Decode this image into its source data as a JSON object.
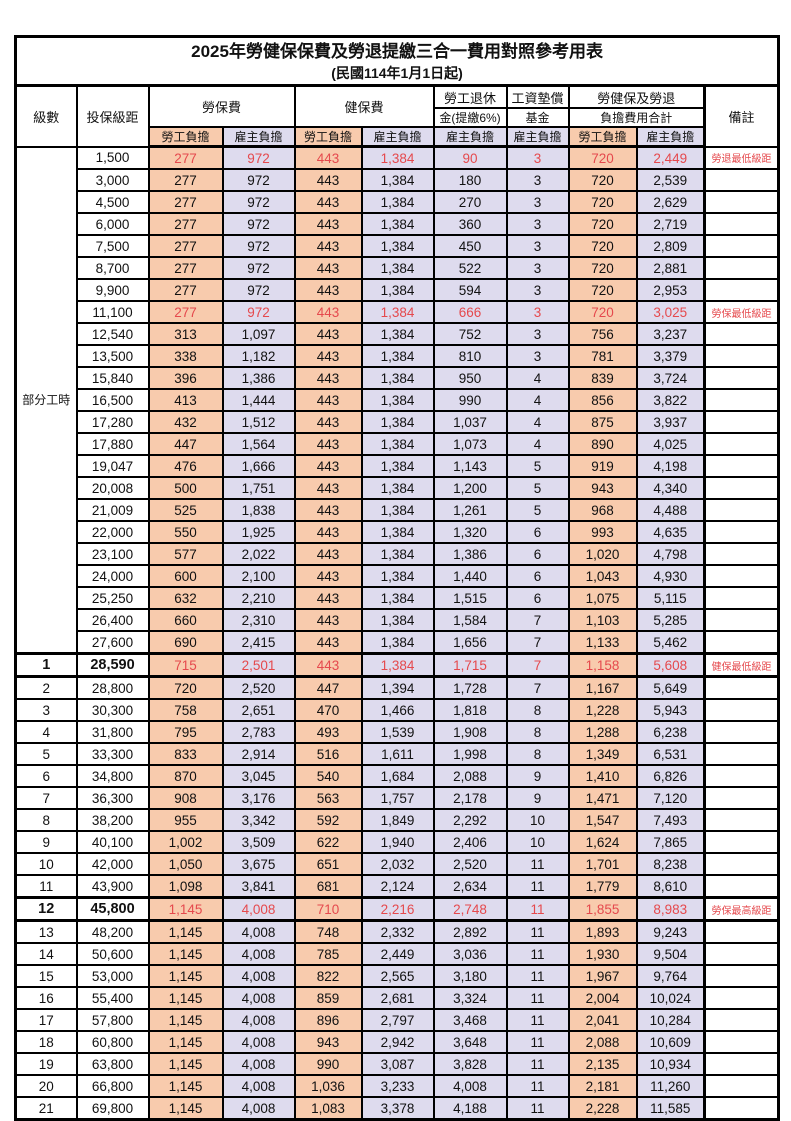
{
  "title": "2025年勞健保保費及勞退提繳三合一費用對照參考用表",
  "subtitle": "(民國114年1月1日起)",
  "colors": {
    "orange": "#F8CBAD",
    "lavender": "#DEDBEE",
    "red_text": "#E5494D",
    "border": "#000000"
  },
  "table": {
    "header": {
      "level": "級數",
      "bracket": "投保級距",
      "labor_fee": "勞保費",
      "health_fee": "健保費",
      "pension_line1": "勞工退休",
      "pension_line2": "金(提繳6%)",
      "wage_fund_line1": "工資墊償",
      "wage_fund_line2": "基金",
      "total_line1": "勞健保及勞退",
      "total_line2": "負擔費用合計",
      "remark": "備註",
      "employee": "勞工負擔",
      "employer": "雇主負擔"
    },
    "part_time_label": "部分工時",
    "part_time_rowspan": 23,
    "thick_top_row_indexes": [
      23,
      24,
      34,
      35
    ],
    "rows": [
      {
        "level": "",
        "bracket": "1,500",
        "labor_emp": "277",
        "labor_er": "972",
        "health_emp": "443",
        "health_er": "1,384",
        "pension_er": "90",
        "fund_er": "3",
        "total_emp": "720",
        "total_er": "2,449",
        "remark": "勞退最低級距",
        "red": true,
        "bold": false
      },
      {
        "level": "",
        "bracket": "3,000",
        "labor_emp": "277",
        "labor_er": "972",
        "health_emp": "443",
        "health_er": "1,384",
        "pension_er": "180",
        "fund_er": "3",
        "total_emp": "720",
        "total_er": "2,539",
        "remark": "",
        "red": false,
        "bold": false
      },
      {
        "level": "",
        "bracket": "4,500",
        "labor_emp": "277",
        "labor_er": "972",
        "health_emp": "443",
        "health_er": "1,384",
        "pension_er": "270",
        "fund_er": "3",
        "total_emp": "720",
        "total_er": "2,629",
        "remark": "",
        "red": false,
        "bold": false
      },
      {
        "level": "",
        "bracket": "6,000",
        "labor_emp": "277",
        "labor_er": "972",
        "health_emp": "443",
        "health_er": "1,384",
        "pension_er": "360",
        "fund_er": "3",
        "total_emp": "720",
        "total_er": "2,719",
        "remark": "",
        "red": false,
        "bold": false
      },
      {
        "level": "",
        "bracket": "7,500",
        "labor_emp": "277",
        "labor_er": "972",
        "health_emp": "443",
        "health_er": "1,384",
        "pension_er": "450",
        "fund_er": "3",
        "total_emp": "720",
        "total_er": "2,809",
        "remark": "",
        "red": false,
        "bold": false
      },
      {
        "level": "",
        "bracket": "8,700",
        "labor_emp": "277",
        "labor_er": "972",
        "health_emp": "443",
        "health_er": "1,384",
        "pension_er": "522",
        "fund_er": "3",
        "total_emp": "720",
        "total_er": "2,881",
        "remark": "",
        "red": false,
        "bold": false
      },
      {
        "level": "",
        "bracket": "9,900",
        "labor_emp": "277",
        "labor_er": "972",
        "health_emp": "443",
        "health_er": "1,384",
        "pension_er": "594",
        "fund_er": "3",
        "total_emp": "720",
        "total_er": "2,953",
        "remark": "",
        "red": false,
        "bold": false
      },
      {
        "level": "",
        "bracket": "11,100",
        "labor_emp": "277",
        "labor_er": "972",
        "health_emp": "443",
        "health_er": "1,384",
        "pension_er": "666",
        "fund_er": "3",
        "total_emp": "720",
        "total_er": "3,025",
        "remark": "勞保最低級距",
        "red": true,
        "bold": false
      },
      {
        "level": "",
        "bracket": "12,540",
        "labor_emp": "313",
        "labor_er": "1,097",
        "health_emp": "443",
        "health_er": "1,384",
        "pension_er": "752",
        "fund_er": "3",
        "total_emp": "756",
        "total_er": "3,237",
        "remark": "",
        "red": false,
        "bold": false
      },
      {
        "level": "",
        "bracket": "13,500",
        "labor_emp": "338",
        "labor_er": "1,182",
        "health_emp": "443",
        "health_er": "1,384",
        "pension_er": "810",
        "fund_er": "3",
        "total_emp": "781",
        "total_er": "3,379",
        "remark": "",
        "red": false,
        "bold": false
      },
      {
        "level": "",
        "bracket": "15,840",
        "labor_emp": "396",
        "labor_er": "1,386",
        "health_emp": "443",
        "health_er": "1,384",
        "pension_er": "950",
        "fund_er": "4",
        "total_emp": "839",
        "total_er": "3,724",
        "remark": "",
        "red": false,
        "bold": false
      },
      {
        "level": "",
        "bracket": "16,500",
        "labor_emp": "413",
        "labor_er": "1,444",
        "health_emp": "443",
        "health_er": "1,384",
        "pension_er": "990",
        "fund_er": "4",
        "total_emp": "856",
        "total_er": "3,822",
        "remark": "",
        "red": false,
        "bold": false
      },
      {
        "level": "",
        "bracket": "17,280",
        "labor_emp": "432",
        "labor_er": "1,512",
        "health_emp": "443",
        "health_er": "1,384",
        "pension_er": "1,037",
        "fund_er": "4",
        "total_emp": "875",
        "total_er": "3,937",
        "remark": "",
        "red": false,
        "bold": false
      },
      {
        "level": "",
        "bracket": "17,880",
        "labor_emp": "447",
        "labor_er": "1,564",
        "health_emp": "443",
        "health_er": "1,384",
        "pension_er": "1,073",
        "fund_er": "4",
        "total_emp": "890",
        "total_er": "4,025",
        "remark": "",
        "red": false,
        "bold": false
      },
      {
        "level": "",
        "bracket": "19,047",
        "labor_emp": "476",
        "labor_er": "1,666",
        "health_emp": "443",
        "health_er": "1,384",
        "pension_er": "1,143",
        "fund_er": "5",
        "total_emp": "919",
        "total_er": "4,198",
        "remark": "",
        "red": false,
        "bold": false
      },
      {
        "level": "",
        "bracket": "20,008",
        "labor_emp": "500",
        "labor_er": "1,751",
        "health_emp": "443",
        "health_er": "1,384",
        "pension_er": "1,200",
        "fund_er": "5",
        "total_emp": "943",
        "total_er": "4,340",
        "remark": "",
        "red": false,
        "bold": false
      },
      {
        "level": "",
        "bracket": "21,009",
        "labor_emp": "525",
        "labor_er": "1,838",
        "health_emp": "443",
        "health_er": "1,384",
        "pension_er": "1,261",
        "fund_er": "5",
        "total_emp": "968",
        "total_er": "4,488",
        "remark": "",
        "red": false,
        "bold": false
      },
      {
        "level": "",
        "bracket": "22,000",
        "labor_emp": "550",
        "labor_er": "1,925",
        "health_emp": "443",
        "health_er": "1,384",
        "pension_er": "1,320",
        "fund_er": "6",
        "total_emp": "993",
        "total_er": "4,635",
        "remark": "",
        "red": false,
        "bold": false
      },
      {
        "level": "",
        "bracket": "23,100",
        "labor_emp": "577",
        "labor_er": "2,022",
        "health_emp": "443",
        "health_er": "1,384",
        "pension_er": "1,386",
        "fund_er": "6",
        "total_emp": "1,020",
        "total_er": "4,798",
        "remark": "",
        "red": false,
        "bold": false
      },
      {
        "level": "",
        "bracket": "24,000",
        "labor_emp": "600",
        "labor_er": "2,100",
        "health_emp": "443",
        "health_er": "1,384",
        "pension_er": "1,440",
        "fund_er": "6",
        "total_emp": "1,043",
        "total_er": "4,930",
        "remark": "",
        "red": false,
        "bold": false
      },
      {
        "level": "",
        "bracket": "25,250",
        "labor_emp": "632",
        "labor_er": "2,210",
        "health_emp": "443",
        "health_er": "1,384",
        "pension_er": "1,515",
        "fund_er": "6",
        "total_emp": "1,075",
        "total_er": "5,115",
        "remark": "",
        "red": false,
        "bold": false
      },
      {
        "level": "",
        "bracket": "26,400",
        "labor_emp": "660",
        "labor_er": "2,310",
        "health_emp": "443",
        "health_er": "1,384",
        "pension_er": "1,584",
        "fund_er": "7",
        "total_emp": "1,103",
        "total_er": "5,285",
        "remark": "",
        "red": false,
        "bold": false
      },
      {
        "level": "",
        "bracket": "27,600",
        "labor_emp": "690",
        "labor_er": "2,415",
        "health_emp": "443",
        "health_er": "1,384",
        "pension_er": "1,656",
        "fund_er": "7",
        "total_emp": "1,133",
        "total_er": "5,462",
        "remark": "",
        "red": false,
        "bold": false
      },
      {
        "level": "1",
        "bracket": "28,590",
        "labor_emp": "715",
        "labor_er": "2,501",
        "health_emp": "443",
        "health_er": "1,384",
        "pension_er": "1,715",
        "fund_er": "7",
        "total_emp": "1,158",
        "total_er": "5,608",
        "remark": "健保最低級距",
        "red": true,
        "bold": true
      },
      {
        "level": "2",
        "bracket": "28,800",
        "labor_emp": "720",
        "labor_er": "2,520",
        "health_emp": "447",
        "health_er": "1,394",
        "pension_er": "1,728",
        "fund_er": "7",
        "total_emp": "1,167",
        "total_er": "5,649",
        "remark": "",
        "red": false,
        "bold": false
      },
      {
        "level": "3",
        "bracket": "30,300",
        "labor_emp": "758",
        "labor_er": "2,651",
        "health_emp": "470",
        "health_er": "1,466",
        "pension_er": "1,818",
        "fund_er": "8",
        "total_emp": "1,228",
        "total_er": "5,943",
        "remark": "",
        "red": false,
        "bold": false
      },
      {
        "level": "4",
        "bracket": "31,800",
        "labor_emp": "795",
        "labor_er": "2,783",
        "health_emp": "493",
        "health_er": "1,539",
        "pension_er": "1,908",
        "fund_er": "8",
        "total_emp": "1,288",
        "total_er": "6,238",
        "remark": "",
        "red": false,
        "bold": false
      },
      {
        "level": "5",
        "bracket": "33,300",
        "labor_emp": "833",
        "labor_er": "2,914",
        "health_emp": "516",
        "health_er": "1,611",
        "pension_er": "1,998",
        "fund_er": "8",
        "total_emp": "1,349",
        "total_er": "6,531",
        "remark": "",
        "red": false,
        "bold": false
      },
      {
        "level": "6",
        "bracket": "34,800",
        "labor_emp": "870",
        "labor_er": "3,045",
        "health_emp": "540",
        "health_er": "1,684",
        "pension_er": "2,088",
        "fund_er": "9",
        "total_emp": "1,410",
        "total_er": "6,826",
        "remark": "",
        "red": false,
        "bold": false
      },
      {
        "level": "7",
        "bracket": "36,300",
        "labor_emp": "908",
        "labor_er": "3,176",
        "health_emp": "563",
        "health_er": "1,757",
        "pension_er": "2,178",
        "fund_er": "9",
        "total_emp": "1,471",
        "total_er": "7,120",
        "remark": "",
        "red": false,
        "bold": false
      },
      {
        "level": "8",
        "bracket": "38,200",
        "labor_emp": "955",
        "labor_er": "3,342",
        "health_emp": "592",
        "health_er": "1,849",
        "pension_er": "2,292",
        "fund_er": "10",
        "total_emp": "1,547",
        "total_er": "7,493",
        "remark": "",
        "red": false,
        "bold": false
      },
      {
        "level": "9",
        "bracket": "40,100",
        "labor_emp": "1,002",
        "labor_er": "3,509",
        "health_emp": "622",
        "health_er": "1,940",
        "pension_er": "2,406",
        "fund_er": "10",
        "total_emp": "1,624",
        "total_er": "7,865",
        "remark": "",
        "red": false,
        "bold": false
      },
      {
        "level": "10",
        "bracket": "42,000",
        "labor_emp": "1,050",
        "labor_er": "3,675",
        "health_emp": "651",
        "health_er": "2,032",
        "pension_er": "2,520",
        "fund_er": "11",
        "total_emp": "1,701",
        "total_er": "8,238",
        "remark": "",
        "red": false,
        "bold": false
      },
      {
        "level": "11",
        "bracket": "43,900",
        "labor_emp": "1,098",
        "labor_er": "3,841",
        "health_emp": "681",
        "health_er": "2,124",
        "pension_er": "2,634",
        "fund_er": "11",
        "total_emp": "1,779",
        "total_er": "8,610",
        "remark": "",
        "red": false,
        "bold": false
      },
      {
        "level": "12",
        "bracket": "45,800",
        "labor_emp": "1,145",
        "labor_er": "4,008",
        "health_emp": "710",
        "health_er": "2,216",
        "pension_er": "2,748",
        "fund_er": "11",
        "total_emp": "1,855",
        "total_er": "8,983",
        "remark": "勞保最高級距",
        "red": true,
        "bold": true
      },
      {
        "level": "13",
        "bracket": "48,200",
        "labor_emp": "1,145",
        "labor_er": "4,008",
        "health_emp": "748",
        "health_er": "2,332",
        "pension_er": "2,892",
        "fund_er": "11",
        "total_emp": "1,893",
        "total_er": "9,243",
        "remark": "",
        "red": false,
        "bold": false
      },
      {
        "level": "14",
        "bracket": "50,600",
        "labor_emp": "1,145",
        "labor_er": "4,008",
        "health_emp": "785",
        "health_er": "2,449",
        "pension_er": "3,036",
        "fund_er": "11",
        "total_emp": "1,930",
        "total_er": "9,504",
        "remark": "",
        "red": false,
        "bold": false
      },
      {
        "level": "15",
        "bracket": "53,000",
        "labor_emp": "1,145",
        "labor_er": "4,008",
        "health_emp": "822",
        "health_er": "2,565",
        "pension_er": "3,180",
        "fund_er": "11",
        "total_emp": "1,967",
        "total_er": "9,764",
        "remark": "",
        "red": false,
        "bold": false
      },
      {
        "level": "16",
        "bracket": "55,400",
        "labor_emp": "1,145",
        "labor_er": "4,008",
        "health_emp": "859",
        "health_er": "2,681",
        "pension_er": "3,324",
        "fund_er": "11",
        "total_emp": "2,004",
        "total_er": "10,024",
        "remark": "",
        "red": false,
        "bold": false
      },
      {
        "level": "17",
        "bracket": "57,800",
        "labor_emp": "1,145",
        "labor_er": "4,008",
        "health_emp": "896",
        "health_er": "2,797",
        "pension_er": "3,468",
        "fund_er": "11",
        "total_emp": "2,041",
        "total_er": "10,284",
        "remark": "",
        "red": false,
        "bold": false
      },
      {
        "level": "18",
        "bracket": "60,800",
        "labor_emp": "1,145",
        "labor_er": "4,008",
        "health_emp": "943",
        "health_er": "2,942",
        "pension_er": "3,648",
        "fund_er": "11",
        "total_emp": "2,088",
        "total_er": "10,609",
        "remark": "",
        "red": false,
        "bold": false
      },
      {
        "level": "19",
        "bracket": "63,800",
        "labor_emp": "1,145",
        "labor_er": "4,008",
        "health_emp": "990",
        "health_er": "3,087",
        "pension_er": "3,828",
        "fund_er": "11",
        "total_emp": "2,135",
        "total_er": "10,934",
        "remark": "",
        "red": false,
        "bold": false
      },
      {
        "level": "20",
        "bracket": "66,800",
        "labor_emp": "1,145",
        "labor_er": "4,008",
        "health_emp": "1,036",
        "health_er": "3,233",
        "pension_er": "4,008",
        "fund_er": "11",
        "total_emp": "2,181",
        "total_er": "11,260",
        "remark": "",
        "red": false,
        "bold": false
      },
      {
        "level": "21",
        "bracket": "69,800",
        "labor_emp": "1,145",
        "labor_er": "4,008",
        "health_emp": "1,083",
        "health_er": "3,378",
        "pension_er": "4,188",
        "fund_er": "11",
        "total_emp": "2,228",
        "total_er": "11,585",
        "remark": "",
        "red": false,
        "bold": false
      }
    ]
  }
}
